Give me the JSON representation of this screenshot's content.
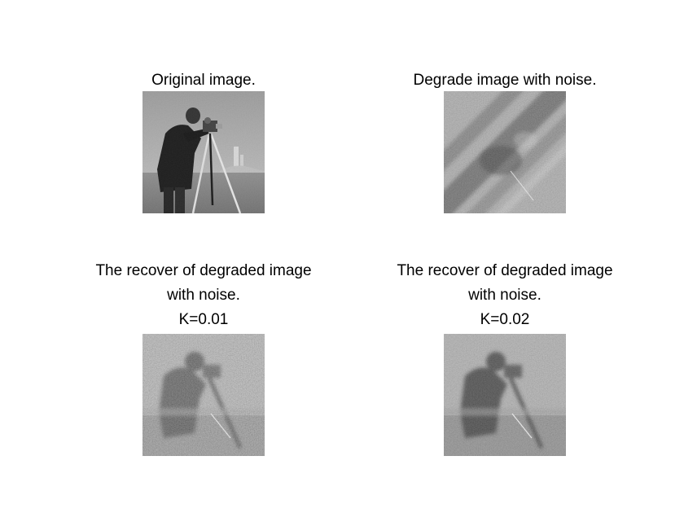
{
  "figure": {
    "panels": [
      {
        "id": "original",
        "title_lines": [
          "Original image."
        ],
        "image": "cameraman-original-grayscale"
      },
      {
        "id": "degraded",
        "title_lines": [
          "Degrade image with noise."
        ],
        "image": "cameraman-motion-blurred-noisy"
      },
      {
        "id": "recover-k001",
        "title_lines": [
          "The recover of degraded image",
          "with noise.",
          "K=0.01"
        ],
        "image": "cameraman-wiener-restored-k0.01"
      },
      {
        "id": "recover-k002",
        "title_lines": [
          "The recover of degraded image",
          "with noise.",
          "K=0.02"
        ],
        "image": "cameraman-wiener-restored-k0.02"
      }
    ]
  }
}
